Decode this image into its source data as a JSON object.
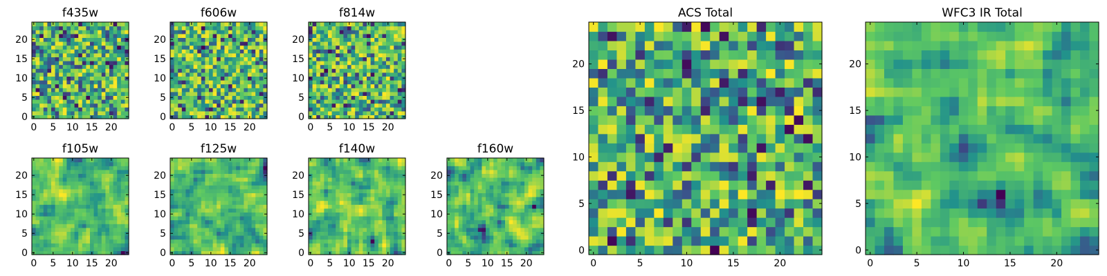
{
  "figure": {
    "colormap": "viridis",
    "colormap_stops": [
      "#440154",
      "#3b528b",
      "#21918c",
      "#5ec962",
      "#fde725"
    ],
    "background": "#ffffff"
  },
  "chart_data": [
    {
      "type": "heatmap",
      "id": "f435w",
      "title": "f435w",
      "grid_size": 25,
      "seed": 11,
      "smoothing": 0,
      "bias": 0.55,
      "xlim": [
        -0.5,
        24.5
      ],
      "ylim": [
        -0.5,
        24.5
      ],
      "xticks": [
        0,
        5,
        10,
        15,
        20
      ],
      "yticks": [
        0,
        5,
        10,
        15,
        20
      ],
      "xticklabels": [
        "0",
        "5",
        "10",
        "15",
        "20"
      ],
      "yticklabels": [
        "0",
        "5",
        "10",
        "15",
        "20"
      ]
    },
    {
      "type": "heatmap",
      "id": "f606w",
      "title": "f606w",
      "grid_size": 25,
      "seed": 23,
      "smoothing": 0,
      "bias": 0.5,
      "xlim": [
        -0.5,
        24.5
      ],
      "ylim": [
        -0.5,
        24.5
      ],
      "xticks": [
        0,
        5,
        10,
        15,
        20
      ],
      "yticks": [
        0,
        5,
        10,
        15,
        20
      ],
      "xticklabels": [
        "0",
        "5",
        "10",
        "15",
        "20"
      ],
      "yticklabels": [
        "0",
        "5",
        "10",
        "15",
        "20"
      ]
    },
    {
      "type": "heatmap",
      "id": "f814w",
      "title": "f814w",
      "grid_size": 25,
      "seed": 37,
      "smoothing": 0,
      "bias": 0.55,
      "xlim": [
        -0.5,
        24.5
      ],
      "ylim": [
        -0.5,
        24.5
      ],
      "xticks": [
        0,
        5,
        10,
        15,
        20
      ],
      "yticks": [
        0,
        5,
        10,
        15,
        20
      ],
      "xticklabels": [
        "0",
        "5",
        "10",
        "15",
        "20"
      ],
      "yticklabels": [
        "0",
        "5",
        "10",
        "15",
        "20"
      ]
    },
    {
      "type": "heatmap",
      "id": "f105w",
      "title": "f105w",
      "grid_size": 25,
      "seed": 41,
      "smoothing": 1,
      "bias": 0.52,
      "xlim": [
        -0.5,
        24.5
      ],
      "ylim": [
        -0.5,
        24.5
      ],
      "xticks": [
        0,
        5,
        10,
        15,
        20
      ],
      "yticks": [
        0,
        5,
        10,
        15,
        20
      ],
      "xticklabels": [
        "0",
        "5",
        "10",
        "15",
        "20"
      ],
      "yticklabels": [
        "0",
        "5",
        "10",
        "15",
        "20"
      ]
    },
    {
      "type": "heatmap",
      "id": "f125w",
      "title": "f125w",
      "grid_size": 25,
      "seed": 53,
      "smoothing": 1,
      "bias": 0.55,
      "xlim": [
        -0.5,
        24.5
      ],
      "ylim": [
        -0.5,
        24.5
      ],
      "xticks": [
        0,
        5,
        10,
        15,
        20
      ],
      "yticks": [
        0,
        5,
        10,
        15,
        20
      ],
      "xticklabels": [
        "0",
        "5",
        "10",
        "15",
        "20"
      ],
      "yticklabels": [
        "0",
        "5",
        "10",
        "15",
        "20"
      ]
    },
    {
      "type": "heatmap",
      "id": "f140w",
      "title": "f140w",
      "grid_size": 25,
      "seed": 67,
      "smoothing": 1,
      "bias": 0.55,
      "xlim": [
        -0.5,
        24.5
      ],
      "ylim": [
        -0.5,
        24.5
      ],
      "xticks": [
        0,
        5,
        10,
        15,
        20
      ],
      "yticks": [
        0,
        5,
        10,
        15,
        20
      ],
      "xticklabels": [
        "0",
        "5",
        "10",
        "15",
        "20"
      ],
      "yticklabels": [
        "0",
        "5",
        "10",
        "15",
        "20"
      ]
    },
    {
      "type": "heatmap",
      "id": "f160w",
      "title": "f160w",
      "grid_size": 25,
      "seed": 79,
      "smoothing": 1,
      "bias": 0.5,
      "xlim": [
        -0.5,
        24.5
      ],
      "ylim": [
        -0.5,
        24.5
      ],
      "xticks": [
        0,
        5,
        10,
        15,
        20
      ],
      "yticks": [
        0,
        5,
        10,
        15,
        20
      ],
      "xticklabels": [
        "0",
        "5",
        "10",
        "15",
        "20"
      ],
      "yticklabels": [
        "0",
        "5",
        "10",
        "15",
        "20"
      ]
    },
    {
      "type": "heatmap",
      "id": "acs-total",
      "title": "ACS Total",
      "grid_size": 25,
      "seed": 97,
      "smoothing": 0,
      "bias": 0.62,
      "xlim": [
        -0.5,
        24.5
      ],
      "ylim": [
        -0.5,
        24.5
      ],
      "xticks": [
        0,
        5,
        10,
        15,
        20
      ],
      "yticks": [
        0,
        5,
        10,
        15,
        20
      ],
      "xticklabels": [
        "0",
        "5",
        "10",
        "15",
        "20"
      ],
      "yticklabels": [
        "0",
        "5",
        "10",
        "15",
        "20"
      ]
    },
    {
      "type": "heatmap",
      "id": "wfc3-ir-total",
      "title": "WFC3 IR Total",
      "grid_size": 25,
      "seed": 131,
      "smoothing": 1,
      "bias": 0.5,
      "xlim": [
        -0.5,
        24.5
      ],
      "ylim": [
        -0.5,
        24.5
      ],
      "xticks": [
        0,
        5,
        10,
        15,
        20
      ],
      "yticks": [
        0,
        5,
        10,
        15,
        20
      ],
      "xticklabels": [
        "0",
        "5",
        "10",
        "15",
        "20"
      ],
      "yticklabels": [
        "0",
        "5",
        "10",
        "15",
        "20"
      ]
    }
  ]
}
